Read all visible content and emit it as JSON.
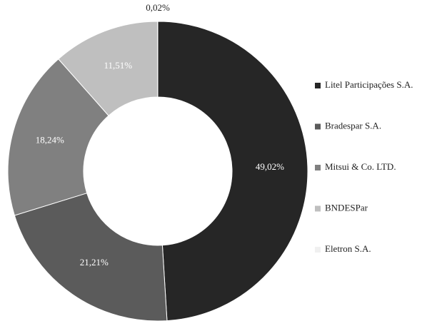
{
  "chart_data": {
    "type": "donut",
    "categories": [
      "Litel Participações S.A.",
      "Bradespar S.A.",
      "Mitsui & Co. LTD.",
      "BNDESPar",
      "Eletron S.A."
    ],
    "values": [
      49.02,
      21.21,
      18.24,
      11.51,
      0.02
    ],
    "value_labels": [
      "49,02%",
      "21,21%",
      "18,24%",
      "11,51%",
      "0,02%"
    ],
    "colors": [
      "#262626",
      "#5b5b5b",
      "#808080",
      "#bfbfbf",
      "#f0f0f0"
    ],
    "legend": "right"
  }
}
